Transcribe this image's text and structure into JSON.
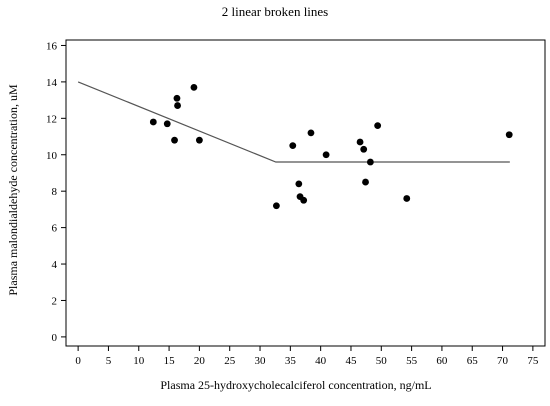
{
  "chart_data": {
    "type": "scatter",
    "title": "2 linear broken lines",
    "xlabel": "Plasma 25-hydroxycholecalciferol concentration, ng/mL",
    "ylabel": "Plasma malondialdehyde concentration, uM",
    "xlim": [
      -2,
      77
    ],
    "ylim": [
      -0.5,
      16.3
    ],
    "xticks": [
      0,
      5,
      10,
      15,
      20,
      25,
      30,
      35,
      40,
      45,
      50,
      55,
      60,
      65,
      70,
      75
    ],
    "yticks": [
      0,
      2,
      4,
      6,
      8,
      10,
      12,
      14,
      16
    ],
    "grid": false,
    "points": [
      {
        "x": 12.4,
        "y": 11.8
      },
      {
        "x": 14.7,
        "y": 11.7
      },
      {
        "x": 15.9,
        "y": 10.8
      },
      {
        "x": 16.3,
        "y": 13.1
      },
      {
        "x": 16.4,
        "y": 12.7
      },
      {
        "x": 19.1,
        "y": 13.7
      },
      {
        "x": 20.0,
        "y": 10.8
      },
      {
        "x": 32.7,
        "y": 7.2
      },
      {
        "x": 35.4,
        "y": 10.5
      },
      {
        "x": 36.4,
        "y": 8.4
      },
      {
        "x": 36.6,
        "y": 7.7
      },
      {
        "x": 37.2,
        "y": 7.5
      },
      {
        "x": 38.4,
        "y": 11.2
      },
      {
        "x": 40.9,
        "y": 10.0
      },
      {
        "x": 46.5,
        "y": 10.7
      },
      {
        "x": 47.1,
        "y": 10.3
      },
      {
        "x": 47.4,
        "y": 8.5
      },
      {
        "x": 48.2,
        "y": 9.6
      },
      {
        "x": 49.4,
        "y": 11.6
      },
      {
        "x": 54.2,
        "y": 7.6
      },
      {
        "x": 71.1,
        "y": 11.1
      }
    ],
    "fit_line": [
      {
        "x": 0,
        "y": 14.0
      },
      {
        "x": 32.6,
        "y": 9.6
      },
      {
        "x": 71.2,
        "y": 9.6
      }
    ]
  }
}
